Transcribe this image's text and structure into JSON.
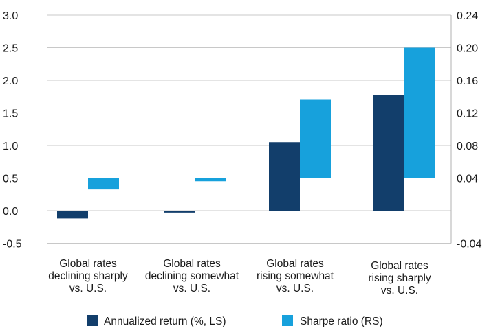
{
  "chart_data": {
    "type": "bar",
    "categories": [
      [
        "Global rates",
        "declining sharply",
        "vs. U.S."
      ],
      [
        "Global rates",
        "declining somewhat",
        "vs. U.S."
      ],
      [
        "Global rates",
        "rising somewhat",
        "vs. U.S."
      ],
      [
        "Global rates",
        "rising sharply",
        "vs. U.S."
      ]
    ],
    "series": [
      {
        "name": "Annualized return (%, LS)",
        "axis": "left",
        "color": "#123e6b",
        "values": [
          -0.12,
          -0.03,
          1.05,
          1.77
        ]
      },
      {
        "name": "Sharpe ratio (RS)",
        "axis": "right",
        "color": "#17a1dc",
        "values": [
          0.026,
          0.036,
          0.136,
          0.2
        ]
      }
    ],
    "left_axis": {
      "ticks": [
        "3.0",
        "2.5",
        "2.0",
        "1.5",
        "1.0",
        "0.5",
        "0.0",
        "-0.5"
      ],
      "ylim": [
        -0.5,
        3.0
      ]
    },
    "right_axis": {
      "ticks": [
        "0.24",
        "0.20",
        "0.16",
        "0.12",
        "0.08",
        "0.04",
        "-0.04"
      ],
      "tick_values": [
        0.24,
        0.2,
        0.16,
        0.12,
        0.08,
        0.04,
        -0.04
      ],
      "ylim": [
        -0.04,
        0.24
      ]
    },
    "grid": true,
    "legend_position": "bottom"
  }
}
